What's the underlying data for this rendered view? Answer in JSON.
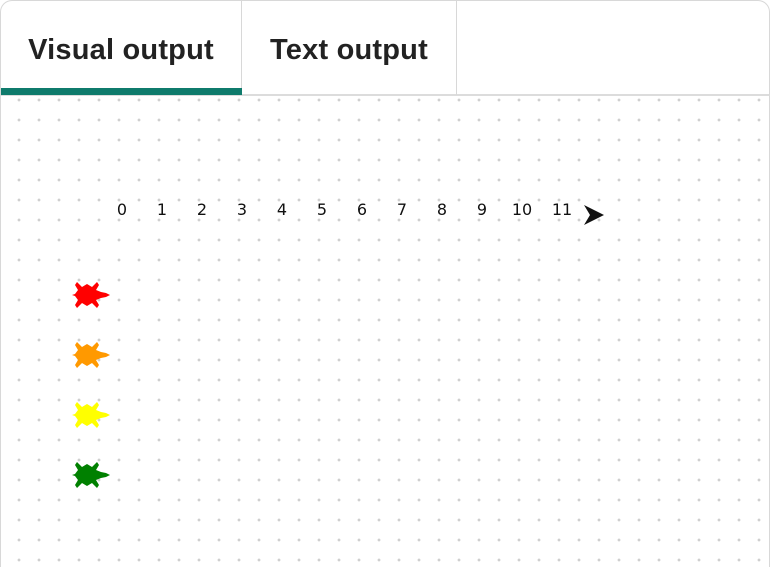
{
  "tabs": [
    {
      "label": "Visual output",
      "active": true
    },
    {
      "label": "Text output",
      "active": false
    }
  ],
  "accent_color": "#0f7b6c",
  "canvas": {
    "numbers": [
      "0",
      "1",
      "2",
      "3",
      "4",
      "5",
      "6",
      "7",
      "8",
      "9",
      "10",
      "11"
    ],
    "pointer_icon": "arrow-cursor-icon",
    "turtles": [
      {
        "color": "#ff0000",
        "icon": "turtle-icon"
      },
      {
        "color": "#ff9900",
        "icon": "turtle-icon"
      },
      {
        "color": "#ffff00",
        "icon": "turtle-icon"
      },
      {
        "color": "#008000",
        "icon": "turtle-icon"
      }
    ]
  }
}
